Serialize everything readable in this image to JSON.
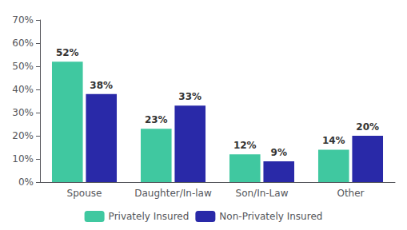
{
  "chart_data": {
    "type": "bar",
    "categories": [
      "Spouse",
      "Daughter/In-law",
      "Son/In-Law",
      "Other"
    ],
    "series": [
      {
        "name": "Privately Insured",
        "color": "#40C8A0",
        "values": [
          52,
          23,
          12,
          14
        ],
        "value_labels": [
          "52%",
          "23%",
          "12%",
          "14%"
        ]
      },
      {
        "name": "Non-Privately Insured",
        "color": "#2929A8",
        "values": [
          38,
          33,
          9,
          20
        ],
        "value_labels": [
          "38%",
          "33%",
          "9%",
          "20%"
        ]
      }
    ],
    "ylim": [
      0,
      70
    ],
    "yticks": [
      {
        "value": 0,
        "label": "0%"
      },
      {
        "value": 10,
        "label": "10%"
      },
      {
        "value": 20,
        "label": "20%"
      },
      {
        "value": 30,
        "label": "30%"
      },
      {
        "value": 40,
        "label": "40%"
      },
      {
        "value": 50,
        "label": "50%"
      },
      {
        "value": 60,
        "label": "60%"
      },
      {
        "value": 70,
        "label": "70%"
      }
    ],
    "grid": false,
    "legend": "bottom",
    "data_labels": true
  }
}
